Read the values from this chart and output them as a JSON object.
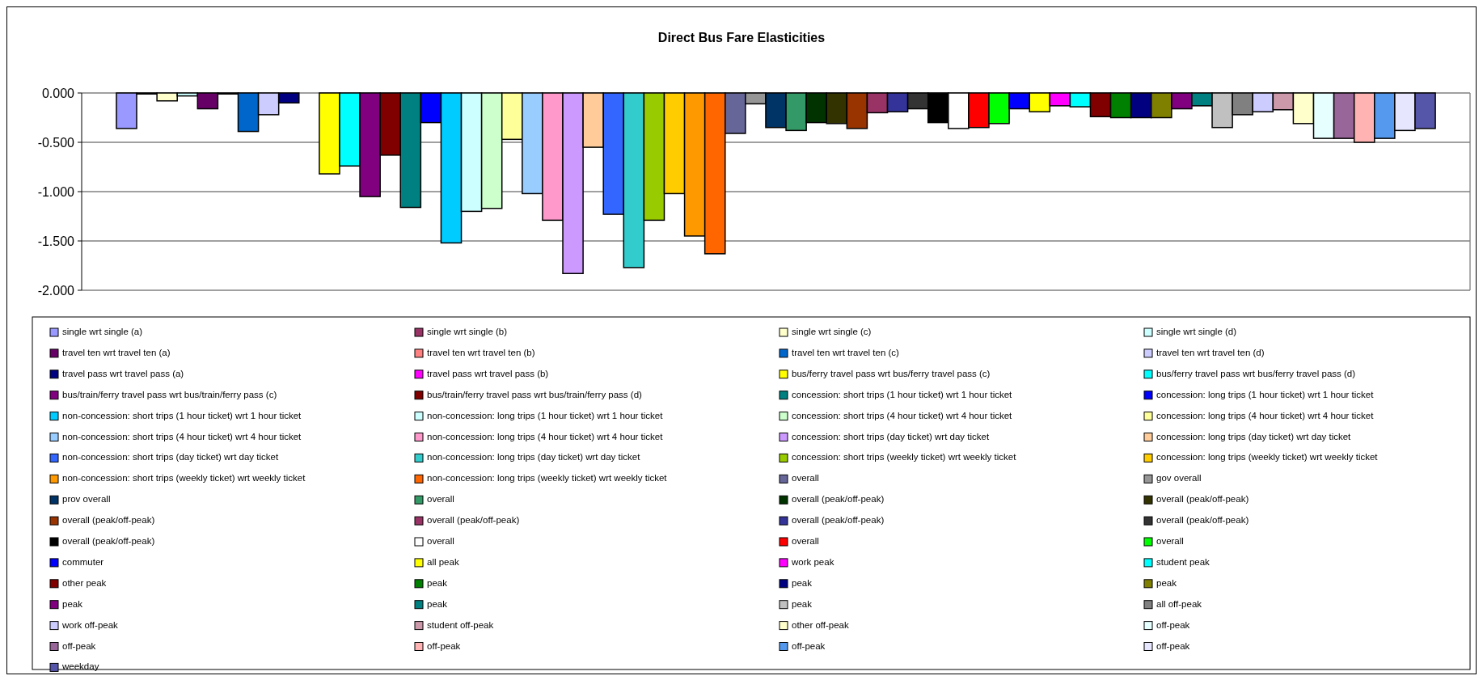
{
  "chart_data": {
    "type": "bar",
    "title": "Direct Bus Fare Elasticities",
    "categories": [
      null
    ],
    "ylim": [
      -2,
      0
    ],
    "yticks": [
      {
        "value": 0,
        "label": "0.000"
      },
      {
        "value": -0.5,
        "label": "-0.500"
      },
      {
        "value": -1,
        "label": "-1.000"
      },
      {
        "value": -1.5,
        "label": "-1.500"
      },
      {
        "value": -2,
        "label": "-2.000"
      }
    ],
    "grid": "y",
    "legend": "bottom",
    "tick_labels": "y",
    "series": [
      {
        "name": "single wrt single (a)",
        "color": "#9999ff",
        "values": [
          -0.36
        ]
      },
      {
        "name": "single wrt single (b)",
        "color": "#993366",
        "values": [
          -0.01
        ]
      },
      {
        "name": "single wrt single (c)",
        "color": "#ffffcc",
        "values": [
          -0.08
        ]
      },
      {
        "name": "single wrt single (d)",
        "color": "#ccffff",
        "values": [
          -0.03
        ]
      },
      {
        "name": "travel ten wrt travel ten (a)",
        "color": "#660066",
        "values": [
          -0.16
        ]
      },
      {
        "name": "travel ten wrt travel ten (b)",
        "color": "#ff8080",
        "values": [
          -0.01
        ]
      },
      {
        "name": "travel ten wrt travel ten (c)",
        "color": "#0066cc",
        "values": [
          -0.39
        ]
      },
      {
        "name": "travel ten wrt travel ten (d)",
        "color": "#ccccff",
        "values": [
          -0.22
        ]
      },
      {
        "name": "travel pass wrt travel pass (a)",
        "color": "#000080",
        "values": [
          -0.1
        ]
      },
      {
        "name": "travel pass wrt travel pass (b)",
        "color": "#ff00ff",
        "values": [
          null
        ]
      },
      {
        "name": "bus/ferry travel pass wrt bus/ferry travel pass (c)",
        "color": "#ffff00",
        "values": [
          -0.82
        ]
      },
      {
        "name": "bus/ferry travel pass wrt bus/ferry travel pass (d)",
        "color": "#00ffff",
        "values": [
          -0.74
        ]
      },
      {
        "name": "bus/train/ferry travel pass wrt bus/train/ferry pass (c)",
        "color": "#800080",
        "values": [
          -1.05
        ]
      },
      {
        "name": "bus/train/ferry travel pass wrt bus/train/ferry pass (d)",
        "color": "#800000",
        "values": [
          -0.63
        ]
      },
      {
        "name": "concession: short trips (1 hour ticket) wrt 1 hour ticket",
        "color": "#008080",
        "values": [
          -1.16
        ]
      },
      {
        "name": "concession: long trips (1 hour ticket) wrt 1 hour ticket",
        "color": "#0000ff",
        "values": [
          -0.3
        ]
      },
      {
        "name": "non-concession: short trips (1 hour ticket) wrt 1 hour ticket",
        "color": "#00ccff",
        "values": [
          -1.52
        ]
      },
      {
        "name": "non-concession: long trips (1 hour ticket) wrt 1 hour ticket",
        "color": "#ccffff",
        "values": [
          -1.2
        ]
      },
      {
        "name": "concession: short trips (4 hour ticket) wrt 4 hour ticket",
        "color": "#ccffcc",
        "values": [
          -1.17
        ]
      },
      {
        "name": "concession: long trips (4 hour ticket) wrt 4 hour ticket",
        "color": "#ffff99",
        "values": [
          -0.47
        ]
      },
      {
        "name": "non-concession: short trips (4 hour ticket) wrt 4 hour ticket",
        "color": "#99ccff",
        "values": [
          -1.02
        ]
      },
      {
        "name": "non-concession: long trips (4 hour ticket) wrt 4 hour ticket",
        "color": "#ff99cc",
        "values": [
          -1.29
        ]
      },
      {
        "name": "concession: short trips (day ticket) wrt day ticket",
        "color": "#cc99ff",
        "values": [
          -1.83
        ]
      },
      {
        "name": "concession: long trips (day ticket) wrt day ticket",
        "color": "#ffcc99",
        "values": [
          -0.55
        ]
      },
      {
        "name": "non-concession: short trips (day ticket) wrt day ticket",
        "color": "#3366ff",
        "values": [
          -1.23
        ]
      },
      {
        "name": "non-concession: long trips (day ticket) wrt day ticket",
        "color": "#33cccc",
        "values": [
          -1.77
        ]
      },
      {
        "name": "concession: short trips (weekly ticket) wrt weekly ticket",
        "color": "#99cc00",
        "values": [
          -1.29
        ]
      },
      {
        "name": "concession: long trips (weekly ticket) wrt weekly ticket",
        "color": "#ffcc00",
        "values": [
          -1.02
        ]
      },
      {
        "name": "non-concession: short trips (weekly ticket) wrt weekly ticket",
        "color": "#ff9900",
        "values": [
          -1.45
        ]
      },
      {
        "name": "non-concession: long trips (weekly ticket) wrt weekly ticket",
        "color": "#ff6600",
        "values": [
          -1.63
        ]
      },
      {
        "name": "overall",
        "color": "#666699",
        "values": [
          -0.41
        ]
      },
      {
        "name": "gov overall",
        "color": "#969696",
        "values": [
          -0.11
        ]
      },
      {
        "name": "prov overall",
        "color": "#003366",
        "values": [
          -0.35
        ]
      },
      {
        "name": "overall",
        "color": "#339966",
        "values": [
          -0.38
        ]
      },
      {
        "name": "overall (peak/off-peak)",
        "color": "#003300",
        "values": [
          -0.3
        ]
      },
      {
        "name": "overall (peak/off-peak)",
        "color": "#333300",
        "values": [
          -0.31
        ]
      },
      {
        "name": "overall (peak/off-peak)",
        "color": "#993300",
        "values": [
          -0.36
        ]
      },
      {
        "name": "overall (peak/off-peak)",
        "color": "#993366",
        "values": [
          -0.2
        ]
      },
      {
        "name": "overall (peak/off-peak)",
        "color": "#333399",
        "values": [
          -0.19
        ]
      },
      {
        "name": "overall (peak/off-peak)",
        "color": "#333333",
        "values": [
          -0.16
        ]
      },
      {
        "name": "overall (peak/off-peak)",
        "color": "#000000",
        "values": [
          -0.3
        ]
      },
      {
        "name": "overall",
        "color": "#ffffff",
        "values": [
          -0.36
        ]
      },
      {
        "name": "overall",
        "color": "#ff0000",
        "values": [
          -0.35
        ]
      },
      {
        "name": "overall",
        "color": "#00ff00",
        "values": [
          -0.31
        ]
      },
      {
        "name": "commuter",
        "color": "#0000ff",
        "values": [
          -0.16
        ]
      },
      {
        "name": "all peak",
        "color": "#ffff00",
        "values": [
          -0.19
        ]
      },
      {
        "name": "work peak",
        "color": "#ff00ff",
        "values": [
          -0.13
        ]
      },
      {
        "name": "student peak",
        "color": "#00ffff",
        "values": [
          -0.14
        ]
      },
      {
        "name": "other peak",
        "color": "#800000",
        "values": [
          -0.24
        ]
      },
      {
        "name": "peak",
        "color": "#008000",
        "values": [
          -0.25
        ]
      },
      {
        "name": "peak",
        "color": "#000080",
        "values": [
          -0.25
        ]
      },
      {
        "name": "peak",
        "color": "#808000",
        "values": [
          -0.25
        ]
      },
      {
        "name": "peak",
        "color": "#800080",
        "values": [
          -0.16
        ]
      },
      {
        "name": "peak",
        "color": "#008080",
        "values": [
          -0.13
        ]
      },
      {
        "name": "peak",
        "color": "#c0c0c0",
        "values": [
          -0.35
        ]
      },
      {
        "name": "all off-peak",
        "color": "#808080",
        "values": [
          -0.22
        ]
      },
      {
        "name": "work off-peak",
        "color": "#ccccff",
        "values": [
          -0.19
        ]
      },
      {
        "name": "student off-peak",
        "color": "#cc99aa",
        "values": [
          -0.17
        ]
      },
      {
        "name": "other off-peak",
        "color": "#ffffcc",
        "values": [
          -0.31
        ]
      },
      {
        "name": "off-peak",
        "color": "#e6ffff",
        "values": [
          -0.46
        ]
      },
      {
        "name": "off-peak",
        "color": "#996699",
        "values": [
          -0.46
        ]
      },
      {
        "name": "off-peak",
        "color": "#ffb3b3",
        "values": [
          -0.5
        ]
      },
      {
        "name": "off-peak",
        "color": "#5599ee",
        "values": [
          -0.46
        ]
      },
      {
        "name": "off-peak",
        "color": "#e6e6ff",
        "values": [
          -0.38
        ]
      },
      {
        "name": "weekday",
        "color": "#5555aa",
        "values": [
          -0.36
        ]
      }
    ]
  }
}
